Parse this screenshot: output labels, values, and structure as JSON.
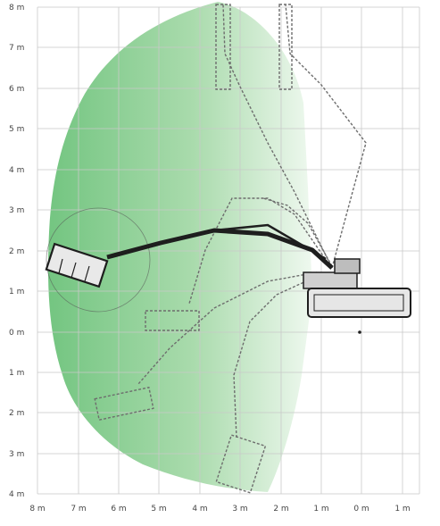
{
  "diagram": {
    "y_ticks": [
      "8 m",
      "7 m",
      "6 m",
      "5 m",
      "4 m",
      "3 m",
      "2 m",
      "1 m",
      "0 m",
      "1 m",
      "2 m",
      "3 m",
      "4 m"
    ],
    "x_ticks": [
      "8 m",
      "7 m",
      "6 m",
      "5 m",
      "4 m",
      "3 m",
      "2 m",
      "1 m",
      "0 m",
      "1 m"
    ],
    "colors": {
      "grid": "#c9c9c9",
      "envelope_dark": "#6cc27a",
      "envelope_light": "#e6f5e6",
      "machine": "#1e1e1e",
      "ghost_boom": "#6d6d6d"
    },
    "parts": {
      "envelope": "working-range-envelope",
      "machine": "demolition-machine",
      "boom_positions": "boom-positions"
    }
  }
}
